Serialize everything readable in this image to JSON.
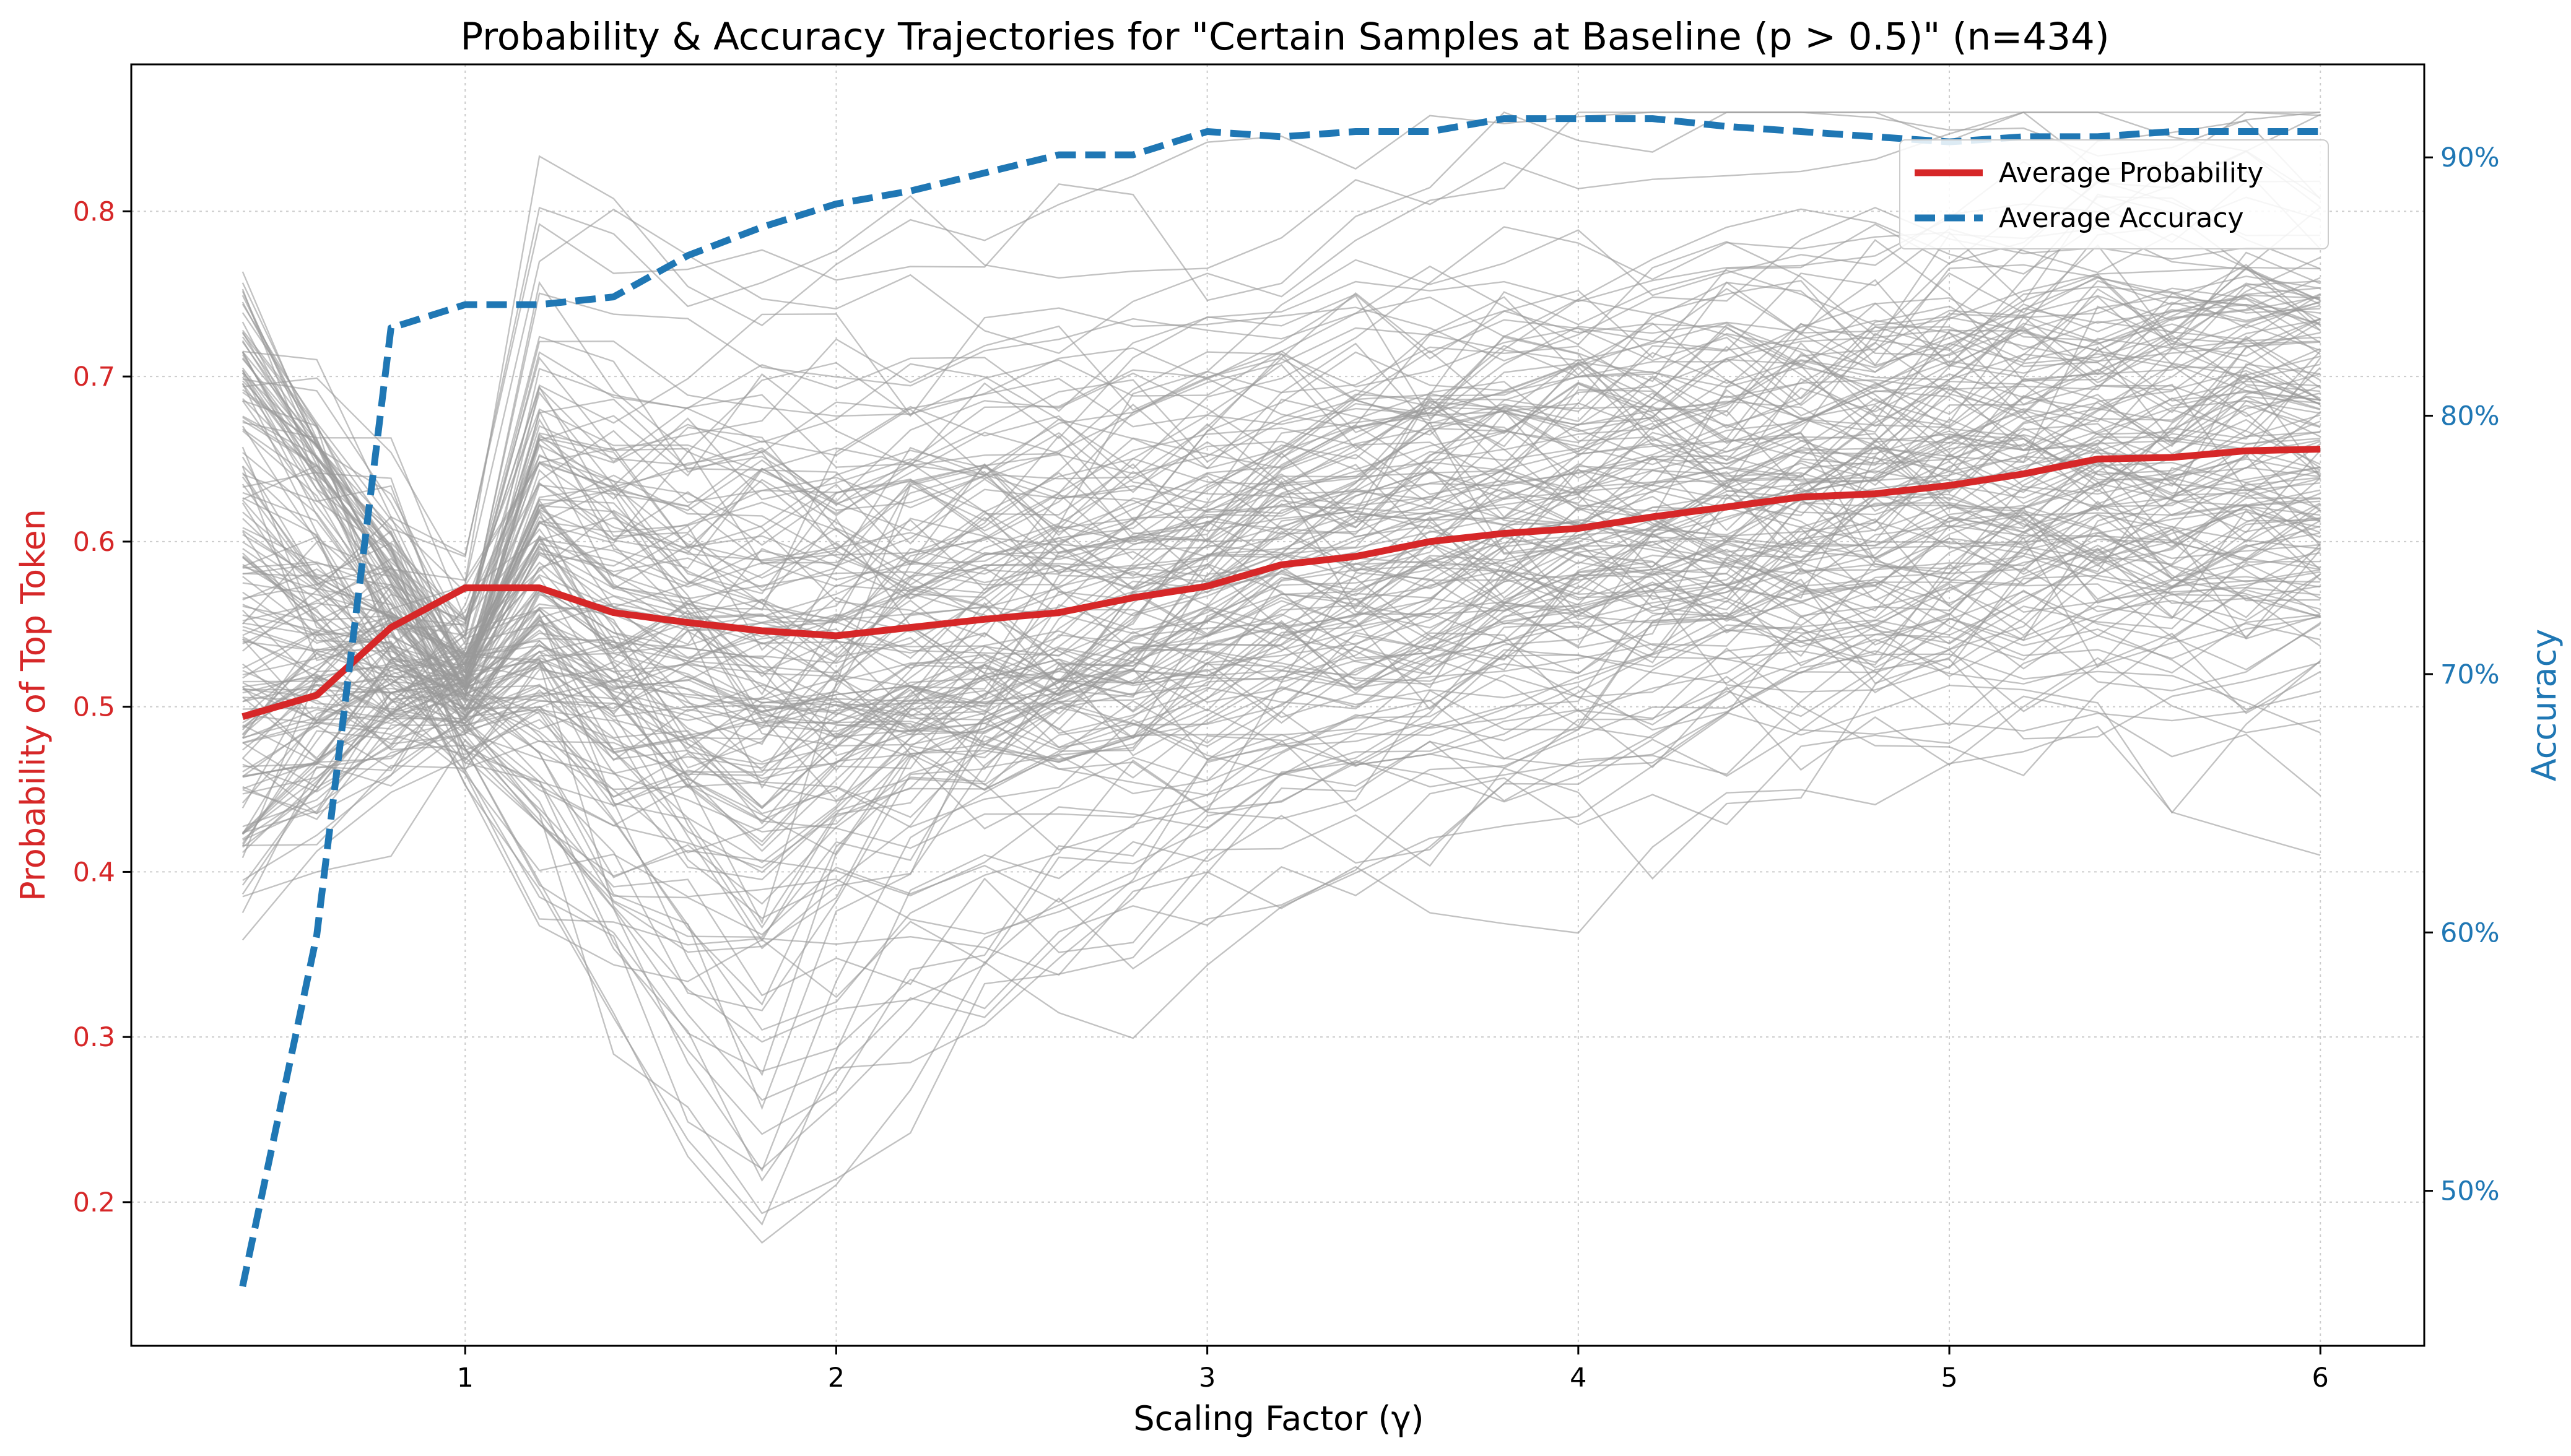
{
  "chart_data": {
    "type": "line",
    "title": "Probability & Accuracy Trajectories for \"Certain Samples at Baseline (p > 0.5)\" (n=434)",
    "xlabel": "Scaling Factor (γ)",
    "ylabel_left": "Probability of Top Token",
    "ylabel_right": "Accuracy",
    "xlim": [
      0.1,
      6.28
    ],
    "ylim_left": [
      0.113,
      0.889
    ],
    "ylim_right": [
      44.0,
      93.6
    ],
    "xticks": [
      1,
      2,
      3,
      4,
      5,
      6
    ],
    "xtick_labels": [
      "1",
      "2",
      "3",
      "4",
      "5",
      "6"
    ],
    "yticks_left": [
      0.2,
      0.3,
      0.4,
      0.5,
      0.6,
      0.7,
      0.8
    ],
    "ytick_labels_left": [
      "0.2",
      "0.3",
      "0.4",
      "0.5",
      "0.6",
      "0.7",
      "0.8"
    ],
    "yticks_right": [
      50,
      60,
      70,
      80,
      90
    ],
    "ytick_labels_right": [
      "50%",
      "60%",
      "70%",
      "80%",
      "90%"
    ],
    "grid": true,
    "legend_position": "top-right",
    "legend": [
      "Average Probability",
      "Average Accuracy"
    ],
    "x": [
      0.4,
      0.6,
      0.8,
      1.0,
      1.2,
      1.4,
      1.6,
      1.8,
      2.0,
      2.2,
      2.4,
      2.6,
      2.8,
      3.0,
      3.2,
      3.4,
      3.6,
      3.8,
      4.0,
      4.2,
      4.4,
      4.6,
      4.8,
      5.0,
      5.2,
      5.4,
      5.6,
      5.8,
      6.0
    ],
    "series": [
      {
        "name": "Average Probability",
        "axis": "left",
        "color": "#d62728",
        "style": "solid",
        "values": [
          0.494,
          0.507,
          0.548,
          0.572,
          0.572,
          0.557,
          0.551,
          0.546,
          0.543,
          0.548,
          0.553,
          0.557,
          0.566,
          0.573,
          0.586,
          0.591,
          0.6,
          0.605,
          0.608,
          0.615,
          0.621,
          0.627,
          0.629,
          0.634,
          0.641,
          0.65,
          0.651,
          0.655,
          0.656
        ]
      },
      {
        "name": "Average Accuracy",
        "axis": "right",
        "color": "#1f77b4",
        "style": "dashed",
        "values": [
          46.3,
          59.9,
          83.4,
          84.3,
          84.3,
          84.6,
          86.2,
          87.3,
          88.2,
          88.7,
          89.4,
          90.1,
          90.1,
          91.0,
          90.8,
          91.0,
          91.0,
          91.5,
          91.5,
          91.5,
          91.2,
          91.0,
          90.8,
          90.6,
          90.8,
          90.8,
          91.0,
          91.0,
          91.0
        ]
      }
    ],
    "individual_trajectories": {
      "count": 434,
      "color": "#999999",
      "description_count_label": "n=434"
    }
  }
}
